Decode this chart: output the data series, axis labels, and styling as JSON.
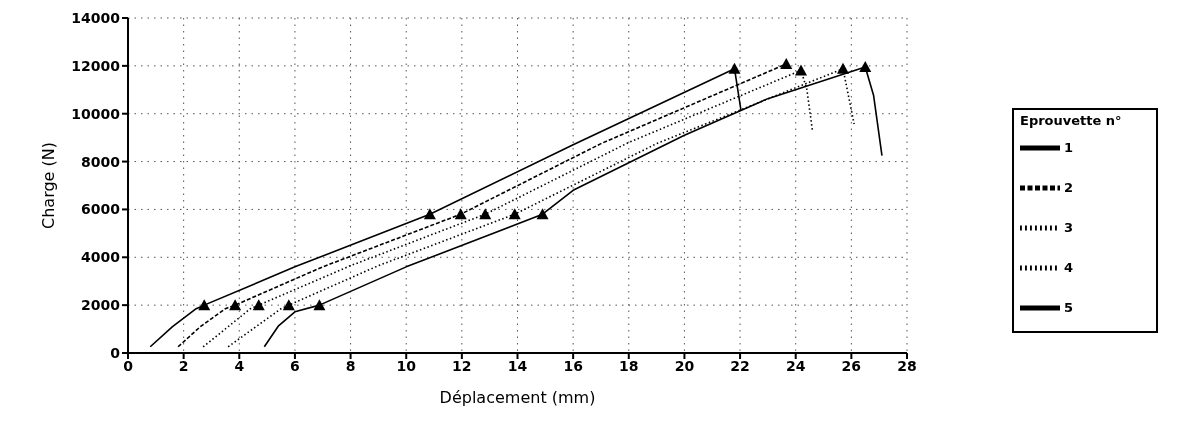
{
  "chart_data": {
    "type": "line",
    "xlabel": "Déplacement (mm)",
    "ylabel": "Charge (N)",
    "legend_title": "Eprouvette n°",
    "xlim": [
      0,
      28
    ],
    "xticks": [
      0,
      2,
      4,
      6,
      8,
      10,
      12,
      14,
      16,
      18,
      20,
      22,
      24,
      26,
      28
    ],
    "ylim": [
      0,
      14000
    ],
    "yticks": [
      0,
      2000,
      4000,
      6000,
      8000,
      10000,
      12000,
      14000
    ],
    "grid": true,
    "legend": "right",
    "marker": "none",
    "series": [
      {
        "name": "1",
        "color": "#000000",
        "line_style": "solid",
        "x": [
          0.8,
          1.6,
          2.45,
          2.74,
          6.0,
          10.85,
          16,
          21.8,
          22.03
        ],
        "values": [
          260,
          1100,
          1850,
          2000,
          3600,
          5800,
          8700,
          11880,
          10160
        ]
      },
      {
        "name": "2",
        "color": "#000000",
        "line_style": "dashed",
        "x": [
          1.8,
          2.6,
          3.5,
          3.85,
          7.0,
          11.96,
          17,
          23.66
        ],
        "values": [
          260,
          1100,
          1850,
          2000,
          3600,
          5800,
          8750,
          12080
        ]
      },
      {
        "name": "3",
        "color": "#000000",
        "line_style": "dotted",
        "x": [
          2.7,
          3.6,
          4.4,
          4.7,
          8.0,
          12.84,
          18,
          24.19,
          24.4,
          24.6
        ],
        "values": [
          260,
          1100,
          1850,
          2000,
          3650,
          5800,
          8800,
          11810,
          11020,
          9300
        ]
      },
      {
        "name": "4",
        "color": "#000000",
        "line_style": "dotted",
        "x": [
          3.6,
          4.6,
          5.5,
          5.78,
          9.0,
          13.9,
          19,
          25.7,
          26.1
        ],
        "values": [
          260,
          1100,
          1850,
          2000,
          3650,
          5800,
          8750,
          11880,
          9570
        ]
      },
      {
        "name": "5",
        "color": "#000000",
        "line_style": "solid",
        "x": [
          4.9,
          5.4,
          6.0,
          6.88,
          10.0,
          14.9,
          16,
          20,
          23,
          26.5,
          26.8,
          27.1
        ],
        "values": [
          260,
          1120,
          1720,
          2000,
          3600,
          5800,
          6800,
          9100,
          10630,
          11950,
          10760,
          8250
        ]
      },
      {
        "type": "scatter",
        "marker": "triangle",
        "color": "#000000",
        "x": [
          2.74,
          3.85,
          4.7,
          5.78,
          6.88,
          10.85,
          11.96,
          12.84,
          13.9,
          14.9,
          21.8,
          23.66,
          24.19,
          25.7,
          26.5
        ],
        "values": [
          2000,
          2000,
          2000,
          2000,
          2000,
          5800,
          5800,
          5800,
          5800,
          5800,
          11880,
          12080,
          11810,
          11880,
          11950
        ]
      }
    ]
  }
}
